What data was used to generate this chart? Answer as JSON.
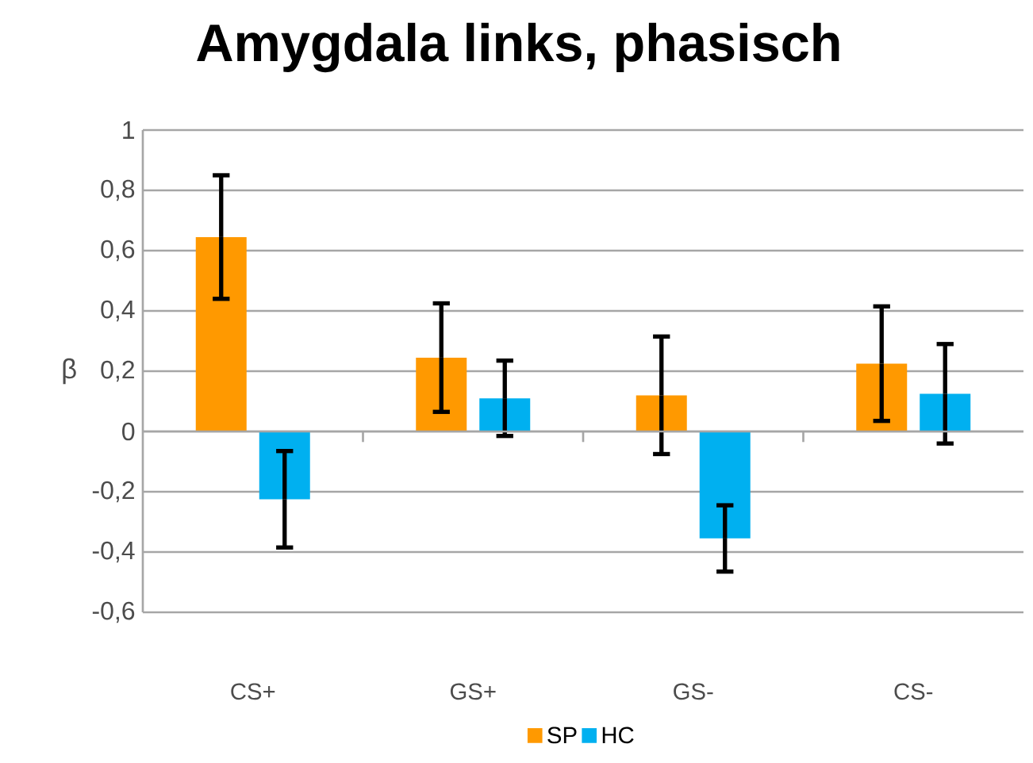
{
  "chart_data": {
    "type": "bar",
    "title": "Amygdala links, phasisch",
    "ylabel": "β",
    "categories": [
      "CS+",
      "GS+",
      "GS-",
      "CS-"
    ],
    "series": [
      {
        "name": "SP",
        "color": "#ff9900",
        "values": [
          0.645,
          0.245,
          0.12,
          0.225
        ],
        "errors": [
          0.205,
          0.18,
          0.195,
          0.19
        ]
      },
      {
        "name": "HC",
        "color": "#00b0f0",
        "values": [
          -0.225,
          0.11,
          -0.355,
          0.125
        ],
        "errors": [
          0.16,
          0.125,
          0.11,
          0.165
        ]
      }
    ],
    "ylim": [
      -0.6,
      1
    ],
    "yticks": [
      {
        "value": -0.6,
        "label": "-0,6"
      },
      {
        "value": -0.4,
        "label": "-0,4"
      },
      {
        "value": -0.2,
        "label": "-0,2"
      },
      0,
      {
        "value": 0.2,
        "label": "0,2"
      },
      {
        "value": 0.4,
        "label": "0,4"
      },
      {
        "value": 0.6,
        "label": "0,6"
      },
      {
        "value": 0.8,
        "label": "0,8"
      },
      1
    ],
    "grid": "y",
    "legend": "bottom"
  }
}
